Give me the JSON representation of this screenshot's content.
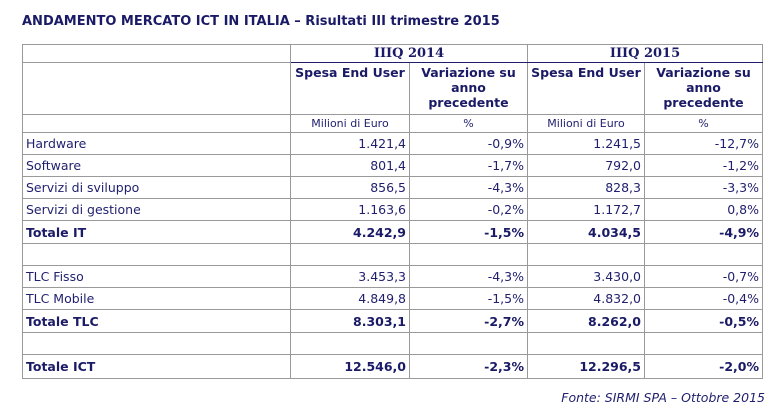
{
  "title": "ANDAMENTO MERCATO ICT IN ITALIA – Risultati III trimestre 2015",
  "periods": [
    "IIIQ 2014",
    "IIIQ 2015"
  ],
  "column_headers": {
    "spesa": "Spesa End User",
    "variazione": "Variazione su anno precedente"
  },
  "units": {
    "spesa": "Milioni di Euro",
    "variazione": "%"
  },
  "rows": [
    {
      "label": "Hardware",
      "q2014_spesa": "1.421,4",
      "q2014_var": "-0,9%",
      "q2015_spesa": "1.241,5",
      "q2015_var": "-12,7%"
    },
    {
      "label": "Software",
      "q2014_spesa": "801,4",
      "q2014_var": "-1,7%",
      "q2015_spesa": "792,0",
      "q2015_var": "-1,2%"
    },
    {
      "label": "Servizi di sviluppo",
      "q2014_spesa": "856,5",
      "q2014_var": "-4,3%",
      "q2015_spesa": "828,3",
      "q2015_var": "-3,3%"
    },
    {
      "label": "Servizi di gestione",
      "q2014_spesa": "1.163,6",
      "q2014_var": "-0,2%",
      "q2015_spesa": "1.172,7",
      "q2015_var": "0,8%"
    },
    {
      "label": "Totale IT",
      "q2014_spesa": "4.242,9",
      "q2014_var": "-1,5%",
      "q2015_spesa": "4.034,5",
      "q2015_var": "-4,9%"
    },
    {
      "label": "TLC Fisso",
      "q2014_spesa": "3.453,3",
      "q2014_var": "-4,3%",
      "q2015_spesa": "3.430,0",
      "q2015_var": "-0,7%"
    },
    {
      "label": "TLC Mobile",
      "q2014_spesa": "4.849,8",
      "q2014_var": "-1,5%",
      "q2015_spesa": "4.832,0",
      "q2015_var": "-0,4%"
    },
    {
      "label": "Totale TLC",
      "q2014_spesa": "8.303,1",
      "q2014_var": "-2,7%",
      "q2015_spesa": "8.262,0",
      "q2015_var": "-0,5%"
    },
    {
      "label": "Totale ICT",
      "q2014_spesa": "12.546,0",
      "q2014_var": "-2,3%",
      "q2015_spesa": "12.296,5",
      "q2015_var": "-2,0%"
    }
  ],
  "source": "Fonte: SIRMI SPA – Ottobre 2015"
}
